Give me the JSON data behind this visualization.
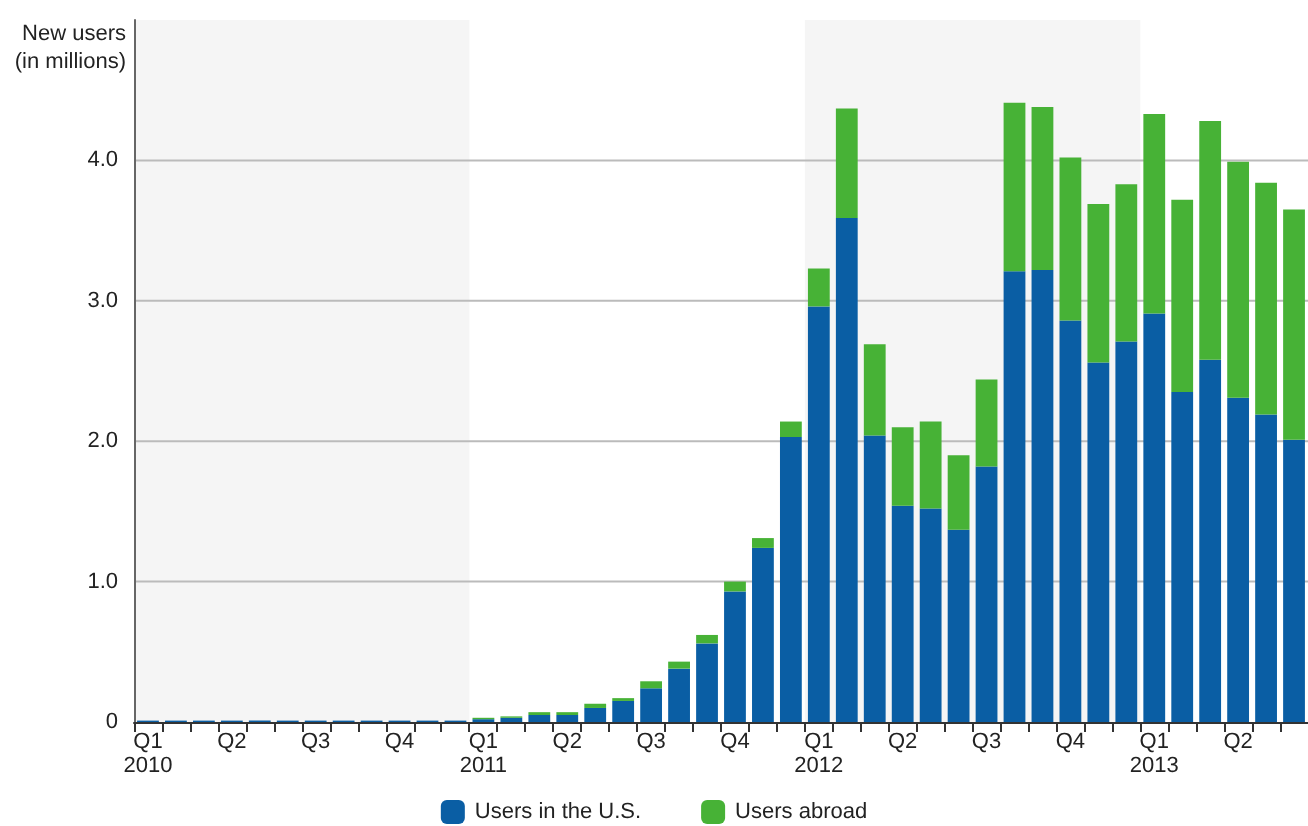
{
  "chart_data": {
    "type": "bar",
    "stacked": true,
    "ylabel": "New users\n(in millions)",
    "categories": [
      "Q1\n2010",
      null,
      null,
      "Q2",
      null,
      null,
      "Q3",
      null,
      null,
      "Q4",
      null,
      null,
      "Q1\n2011",
      null,
      null,
      "Q2",
      null,
      null,
      "Q3",
      null,
      null,
      "Q4",
      null,
      null,
      "Q1\n2012",
      null,
      null,
      "Q2",
      null,
      null,
      "Q3",
      null,
      null,
      "Q4",
      null,
      null,
      "Q1\n2013",
      null,
      null,
      "Q2",
      null,
      null
    ],
    "series": [
      {
        "name": "Users in the U.S.",
        "color": "#0a5ea4",
        "values": [
          0.01,
          0.01,
          0.01,
          0.01,
          0.01,
          0.01,
          0.01,
          0.01,
          0.01,
          0.01,
          0.01,
          0.01,
          0.02,
          0.03,
          0.05,
          0.05,
          0.1,
          0.15,
          0.24,
          0.38,
          0.56,
          0.93,
          1.24,
          2.03,
          2.96,
          3.59,
          2.04,
          1.54,
          1.52,
          1.37,
          1.82,
          3.21,
          3.22,
          2.86,
          2.56,
          2.71,
          2.91,
          2.35,
          2.58,
          2.31,
          2.19,
          2.01
        ]
      },
      {
        "name": "Users abroad",
        "color": "#47b236",
        "values": [
          0,
          0,
          0,
          0,
          0,
          0,
          0,
          0,
          0,
          0,
          0,
          0,
          0.01,
          0.01,
          0.02,
          0.02,
          0.03,
          0.02,
          0.05,
          0.05,
          0.06,
          0.07,
          0.07,
          0.11,
          0.27,
          0.78,
          0.65,
          0.56,
          0.62,
          0.53,
          0.62,
          1.2,
          1.16,
          1.16,
          1.13,
          1.12,
          1.42,
          1.37,
          1.7,
          1.68,
          1.65,
          1.64
        ]
      }
    ],
    "ylim": [
      0,
      5
    ],
    "yticks": [
      0,
      {
        "value": 1,
        "label": "1.0"
      },
      {
        "value": 2,
        "label": "2.0"
      },
      {
        "value": 3,
        "label": "3.0"
      },
      {
        "value": 4,
        "label": "4.0"
      }
    ],
    "grid": "y",
    "legend": "bottom",
    "bands": [
      {
        "axis": "x",
        "from": "Q1\n2010",
        "to": "Q1\n2011",
        "color": "#f5f5f5"
      },
      {
        "axis": "x",
        "from": "Q1\n2012",
        "to": "Q1\n2013",
        "color": "#f5f5f5"
      }
    ]
  }
}
